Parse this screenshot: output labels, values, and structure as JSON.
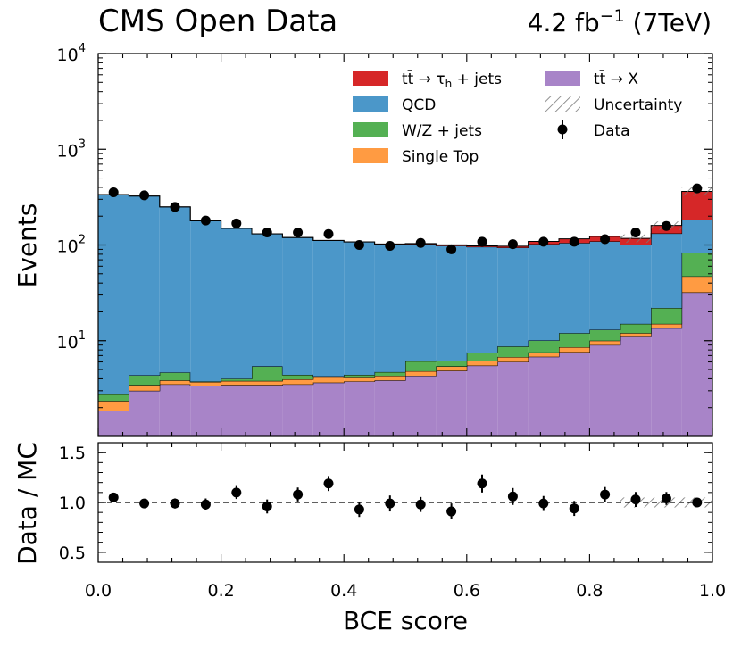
{
  "chart_data": {
    "type": "bar",
    "title": "CMS Open Data",
    "luminosity_base": "4.2 fb",
    "luminosity_exp": "−1",
    "energy": "(7TeV)",
    "xlabel": "BCE score",
    "ylabel_main": "Events",
    "ylabel_ratio": "Data / MC",
    "xlim": [
      0.0,
      1.0
    ],
    "ylim_main": [
      1.0,
      10000
    ],
    "ylim_ratio": [
      0.4,
      1.6
    ],
    "y_scale_main": "log",
    "x_ticks": [
      "0.0",
      "0.2",
      "0.4",
      "0.6",
      "0.8",
      "1.0"
    ],
    "y_ticks_main": [
      {
        "base": "10",
        "exp": "1"
      },
      {
        "base": "10",
        "exp": "2"
      },
      {
        "base": "10",
        "exp": "3"
      },
      {
        "base": "10",
        "exp": "4"
      }
    ],
    "y_ticks_ratio": [
      "0.5",
      "1.0",
      "1.5"
    ],
    "legend_position": "top-right",
    "bin_edges": [
      0.0,
      0.05,
      0.1,
      0.15,
      0.2,
      0.25,
      0.3,
      0.35,
      0.4,
      0.45,
      0.5,
      0.55,
      0.6,
      0.65,
      0.7,
      0.75,
      0.8,
      0.85,
      0.9,
      0.95,
      1.0
    ],
    "series": [
      {
        "name": "tt→X",
        "label_main": "tt̄",
        "label_arrow": " → X",
        "color": "#a884c8",
        "values": [
          1.85,
          3.0,
          3.5,
          3.4,
          3.45,
          3.45,
          3.5,
          3.65,
          3.75,
          3.85,
          4.3,
          4.85,
          5.5,
          6.0,
          6.8,
          7.6,
          9.0,
          11.0,
          13.5,
          32.0
        ]
      },
      {
        "name": "Single Top",
        "label_main": "Single Top",
        "color": "#ff9b42",
        "values": [
          0.5,
          0.45,
          0.35,
          0.3,
          0.35,
          0.35,
          0.45,
          0.5,
          0.35,
          0.45,
          0.5,
          0.55,
          0.7,
          0.75,
          0.75,
          0.95,
          1.0,
          1.0,
          1.5,
          15.0
        ]
      },
      {
        "name": "W/Z + jets",
        "label_main": "W/Z + jets",
        "color": "#54b053",
        "values": [
          0.4,
          0.9,
          0.8,
          0.05,
          0.2,
          1.6,
          0.45,
          0.1,
          0.3,
          0.4,
          1.3,
          0.8,
          1.3,
          1.95,
          2.5,
          3.45,
          3.0,
          3.0,
          7.0,
          36.0
        ]
      },
      {
        "name": "QCD",
        "label_main": "QCD",
        "color": "#4b97c9",
        "values": [
          333,
          320,
          245,
          175,
          145,
          125,
          115,
          107,
          103,
          97,
          96,
          92,
          88,
          85,
          92,
          93,
          96,
          85,
          110,
          100
        ]
      },
      {
        "name": "tt→τh+jets",
        "label_main": "tt̄",
        "label_arrow": " → τ",
        "label_sub": "h",
        "label_tail": " + jets",
        "color": "#d62728",
        "values": [
          0.5,
          0.5,
          0.4,
          0.3,
          0.3,
          0.3,
          0.4,
          0.4,
          0.5,
          0.8,
          1.5,
          2.0,
          2.5,
          3.5,
          7.0,
          11.0,
          14.0,
          17.0,
          28.0,
          180.0
        ]
      }
    ],
    "data": {
      "name": "Data",
      "x": [
        0.025,
        0.075,
        0.125,
        0.175,
        0.225,
        0.275,
        0.325,
        0.375,
        0.425,
        0.475,
        0.525,
        0.575,
        0.625,
        0.675,
        0.725,
        0.775,
        0.825,
        0.875,
        0.925,
        0.975
      ],
      "values": [
        355,
        330,
        250,
        180,
        168,
        135,
        135,
        130,
        100,
        98,
        105,
        90,
        108,
        102,
        108,
        108,
        115,
        135,
        158,
        390
      ]
    },
    "ratio": {
      "values": [
        1.05,
        0.99,
        0.99,
        0.98,
        1.1,
        0.96,
        1.08,
        1.19,
        0.93,
        0.99,
        0.98,
        0.91,
        1.19,
        1.06,
        0.99,
        0.94,
        1.08,
        1.03,
        1.04,
        1.0
      ],
      "errors": [
        0.035,
        0.04,
        0.05,
        0.06,
        0.065,
        0.07,
        0.07,
        0.075,
        0.075,
        0.08,
        0.075,
        0.08,
        0.09,
        0.085,
        0.075,
        0.075,
        0.075,
        0.075,
        0.065,
        0.04
      ]
    },
    "uncertainty_label": "Uncertainty"
  }
}
